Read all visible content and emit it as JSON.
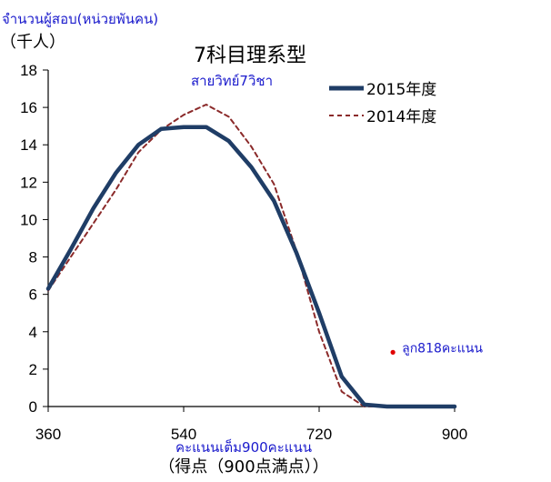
{
  "chart_data": {
    "type": "line",
    "title": "7科目理系型",
    "title_translation": "สายวิทย์7วิชา",
    "ylabel": "（千人）",
    "ylabel_translation": "จำนวนผู้สอบ(หน่วยพันคน)",
    "xlabel": "（得点（900点満点））",
    "xlabel_translation": "คะแนนเต็ม900คะแนน",
    "xlim": [
      360,
      900
    ],
    "ylim": [
      0,
      18
    ],
    "x_ticks": [
      "360",
      "540",
      "720",
      "900"
    ],
    "y_ticks": [
      "0",
      "2",
      "4",
      "6",
      "8",
      "10",
      "12",
      "14",
      "16",
      "18"
    ],
    "x": [
      360,
      390,
      420,
      450,
      480,
      510,
      540,
      570,
      600,
      630,
      660,
      690,
      720,
      750,
      780,
      810,
      840,
      870,
      900
    ],
    "series": [
      {
        "name": "2015年度",
        "color": "#1f3d66",
        "style": "solid",
        "values": [
          6.3,
          8.4,
          10.6,
          12.5,
          14.0,
          14.85,
          14.95,
          14.95,
          14.2,
          12.8,
          11.0,
          8.2,
          5.0,
          1.6,
          0.1,
          0.0,
          0.0,
          0.0,
          0.0
        ]
      },
      {
        "name": "2014年度",
        "color": "#8b2a2a",
        "style": "dashed",
        "values": [
          6.2,
          8.0,
          9.8,
          11.6,
          13.6,
          14.8,
          15.6,
          16.15,
          15.5,
          13.9,
          11.9,
          8.3,
          4.0,
          0.8,
          0.0,
          0.0,
          0.0,
          0.0,
          0.0
        ]
      }
    ],
    "annotation": {
      "text": "ลูก818คะแนน",
      "x": 818,
      "y": 2.9,
      "color": "#e00000"
    },
    "grid": false,
    "legend_position": "top-right"
  }
}
